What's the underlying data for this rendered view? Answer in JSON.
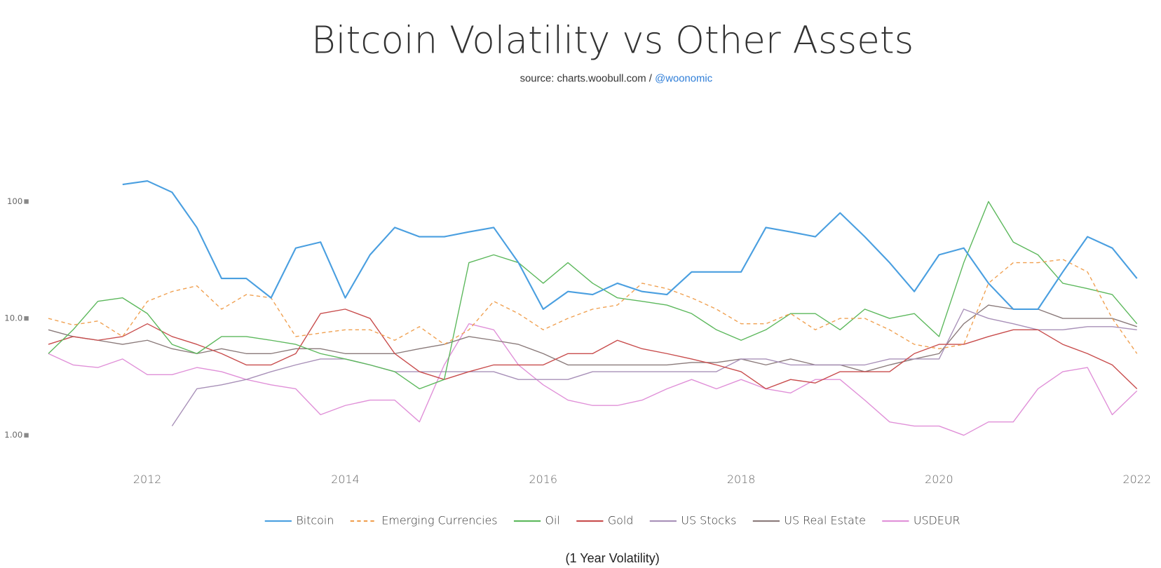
{
  "chart_data": {
    "type": "line",
    "title": "Bitcoin Volatility vs Other Assets",
    "subtitle": "source: charts.woobull.com /",
    "subtitle_link": "@woonomic",
    "x_label": "(1 Year Volatility)",
    "log_scale": true,
    "xlim": [
      2010.8,
      2022.1
    ],
    "xticks": [
      2012,
      2014,
      2016,
      2018,
      2020,
      2022
    ],
    "ylim": [
      0.5,
      500
    ],
    "yticks": [
      {
        "value": 1,
        "label": "1.00"
      },
      {
        "value": 10,
        "label": "10.0"
      },
      100
    ],
    "x": [
      2011,
      2011.25,
      2011.5,
      2011.75,
      2012,
      2012.25,
      2012.5,
      2012.75,
      2013,
      2013.25,
      2013.5,
      2013.75,
      2014,
      2014.25,
      2014.5,
      2014.75,
      2015,
      2015.25,
      2015.5,
      2015.75,
      2016,
      2016.25,
      2016.5,
      2016.75,
      2017,
      2017.25,
      2017.5,
      2017.75,
      2018,
      2018.25,
      2018.5,
      2018.75,
      2019,
      2019.25,
      2019.5,
      2019.75,
      2020,
      2020.25,
      2020.5,
      2020.75,
      2021,
      2021.25,
      2021.5,
      2021.75,
      2022
    ],
    "series": [
      {
        "name": "Bitcoin",
        "color": "#4a9fe0",
        "dashed": false,
        "values": [
          null,
          null,
          null,
          140,
          150,
          120,
          60,
          22,
          22,
          15,
          40,
          45,
          15,
          35,
          60,
          50,
          50,
          55,
          60,
          30,
          12,
          17,
          16,
          20,
          17,
          16,
          25,
          25,
          25,
          60,
          55,
          50,
          80,
          50,
          30,
          17,
          35,
          40,
          20,
          12,
          12,
          25,
          50,
          40,
          22
        ]
      },
      {
        "name": "Emerging Currencies",
        "color": "#f0a050",
        "dashed": true,
        "values": [
          10,
          8.8,
          9.5,
          7,
          14,
          17,
          19,
          12,
          16,
          15,
          7,
          7.5,
          8,
          8,
          6.5,
          8.5,
          6,
          8,
          14,
          11,
          8,
          10,
          12,
          13,
          20,
          18,
          15,
          12,
          9,
          9,
          11,
          8,
          10,
          10,
          8,
          6,
          5.5,
          6,
          20,
          30,
          30,
          32,
          25,
          10,
          5
        ]
      },
      {
        "name": "Oil",
        "color": "#5cb85c",
        "dashed": false,
        "values": [
          5,
          8,
          14,
          15,
          11,
          6,
          5,
          7,
          7,
          6.5,
          6,
          5,
          4.5,
          4,
          3.5,
          2.5,
          3,
          30,
          35,
          30,
          20,
          30,
          20,
          15,
          14,
          13,
          11,
          8,
          6.5,
          8,
          11,
          11,
          8,
          12,
          10,
          11,
          7,
          30,
          100,
          45,
          35,
          20,
          18,
          16,
          9
        ]
      },
      {
        "name": "Gold",
        "color": "#c84c4c",
        "dashed": false,
        "values": [
          6,
          7,
          6.5,
          7,
          9,
          7,
          6,
          5,
          4,
          4,
          5,
          11,
          12,
          10,
          5,
          3.5,
          3,
          3.5,
          4,
          4,
          4,
          5,
          5,
          6.5,
          5.5,
          5,
          4.5,
          4,
          3.5,
          2.5,
          3,
          2.8,
          3.5,
          3.5,
          3.5,
          5,
          6,
          6,
          7,
          8,
          8,
          6,
          5,
          4,
          2.5
        ]
      },
      {
        "name": "US Stocks",
        "color": "#a890b8",
        "dashed": false,
        "values": [
          null,
          null,
          null,
          null,
          null,
          1.2,
          2.5,
          2.7,
          3,
          3.5,
          4,
          4.5,
          4.5,
          4,
          3.5,
          3.5,
          3.5,
          3.5,
          3.5,
          3,
          3,
          3,
          3.5,
          3.5,
          3.5,
          3.5,
          3.5,
          3.5,
          4.5,
          4.5,
          4,
          4,
          4,
          4,
          4.5,
          4.5,
          4.5,
          12,
          10,
          9,
          8,
          8,
          8.5,
          8.5,
          8
        ]
      },
      {
        "name": "US Real Estate",
        "color": "#8a7a7a",
        "dashed": false,
        "values": [
          8,
          7,
          6.5,
          6,
          6.5,
          5.5,
          5,
          5.5,
          5,
          5,
          5.5,
          5.5,
          5,
          5,
          5,
          5.5,
          6,
          7,
          6.5,
          6,
          5,
          4,
          4,
          4,
          4,
          4,
          4.2,
          4.2,
          4.5,
          4,
          4.5,
          4,
          4,
          3.5,
          4,
          4.5,
          5,
          9,
          13,
          12,
          12,
          10,
          10,
          10,
          8.5
        ]
      },
      {
        "name": "USDEUR",
        "color": "#e090d8",
        "dashed": false,
        "values": [
          5,
          4,
          3.8,
          4.5,
          3.3,
          3.3,
          3.8,
          3.5,
          3,
          2.7,
          2.5,
          1.5,
          1.8,
          2,
          2,
          1.3,
          4,
          9,
          8,
          4,
          2.7,
          2,
          1.8,
          1.8,
          2,
          2.5,
          3,
          2.5,
          3,
          2.5,
          2.3,
          3,
          3,
          2,
          1.3,
          1.2,
          1.2,
          1,
          1.3,
          1.3,
          2.5,
          3.5,
          3.8,
          1.5,
          2.4
        ]
      }
    ]
  }
}
